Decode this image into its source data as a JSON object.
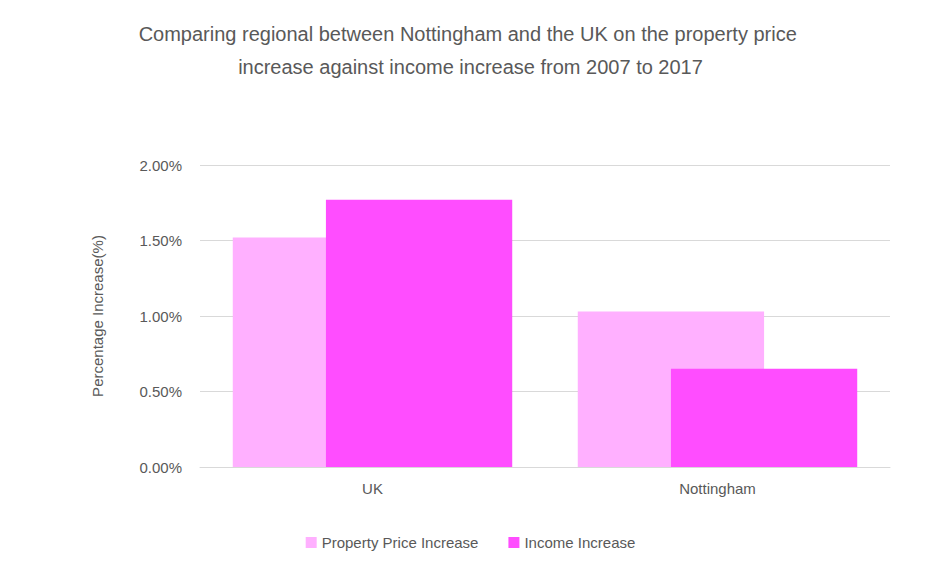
{
  "chart_data": {
    "type": "bar",
    "title": "Comparing regional between Nottingham and the UK on the property price increase against income increase from 2007 to 2017",
    "y_label": "Percentage Increase(%)",
    "categories": [
      "UK",
      "Nottingham"
    ],
    "series": [
      {
        "name": "Property Price Increase",
        "color": "#ffb0ff",
        "values": [
          1.52,
          1.03
        ]
      },
      {
        "name": "Income Increase",
        "color": "#ff4dff",
        "values": [
          1.77,
          0.65
        ]
      }
    ],
    "ylim": [
      0,
      2
    ],
    "yticks": [
      {
        "value": 0,
        "label": "0.00%"
      },
      {
        "value": 0.5,
        "label": "0.50%"
      },
      {
        "value": 1,
        "label": "1.00%"
      },
      {
        "value": 1.5,
        "label": "1.50%"
      },
      {
        "value": 2,
        "label": "2.00%"
      }
    ],
    "grid": true,
    "legend": "bottom"
  }
}
